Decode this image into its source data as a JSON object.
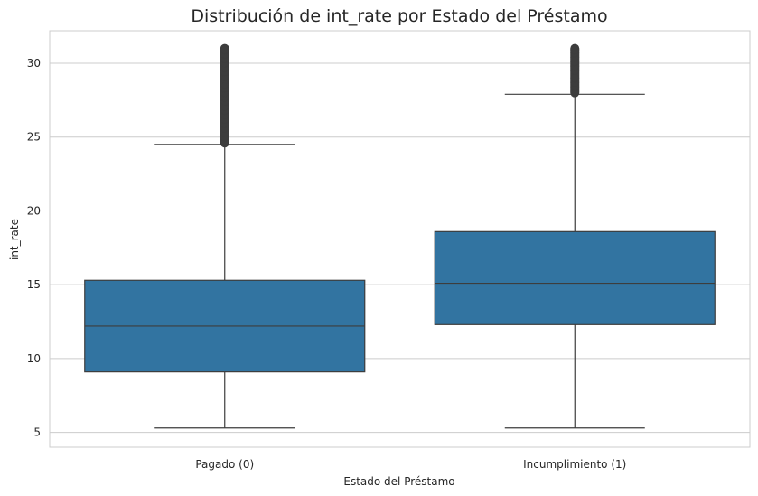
{
  "chart_data": {
    "type": "boxplot",
    "title": "Distribución de int_rate por Estado del Préstamo",
    "xlabel": "Estado del Préstamo",
    "ylabel": "int_rate",
    "categories": [
      "Pagado (0)",
      "Incumplimiento (1)"
    ],
    "ylim": [
      4.0,
      32.2
    ],
    "yticks": [
      5,
      10,
      15,
      20,
      25,
      30
    ],
    "grid": "horizontal",
    "box_color": "#3274a1",
    "edge_color": "#3d3d3d",
    "boxes": [
      {
        "category": "Pagado (0)",
        "whisker_low": 5.3,
        "q1": 9.1,
        "median": 12.2,
        "q3": 15.3,
        "whisker_high": 24.5,
        "outlier_range": [
          24.6,
          31.0
        ],
        "outliers": [
          24.7,
          25.0,
          25.3,
          25.6,
          25.9,
          26.2,
          26.5,
          26.8,
          27.1,
          27.4,
          27.7,
          28.0,
          28.3,
          28.6,
          28.9,
          29.1,
          29.4,
          29.7,
          30.0,
          30.3,
          30.6,
          30.9
        ]
      },
      {
        "category": "Incumplimiento (1)",
        "whisker_low": 5.3,
        "q1": 12.3,
        "median": 15.1,
        "q3": 18.6,
        "whisker_high": 27.9,
        "outlier_range": [
          28.0,
          31.0
        ],
        "outliers": [
          28.1,
          28.4,
          28.7,
          29.0,
          29.5,
          29.8,
          30.1,
          30.4,
          30.7,
          30.9
        ]
      }
    ]
  }
}
